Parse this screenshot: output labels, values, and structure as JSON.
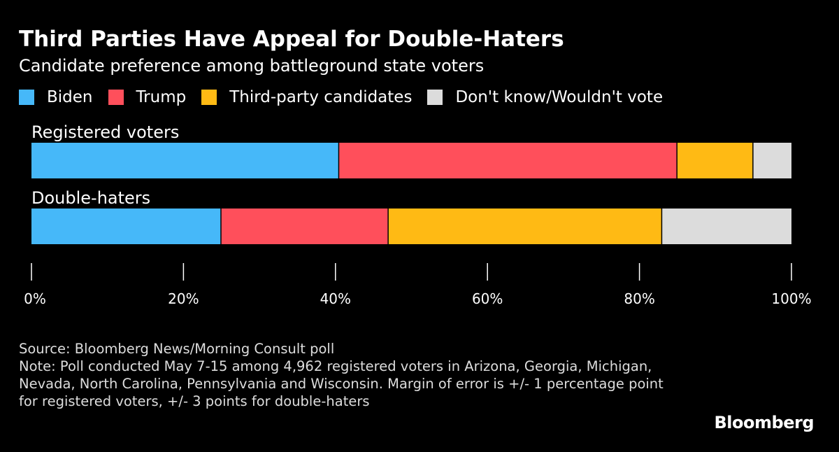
{
  "chart_data": {
    "type": "bar",
    "orientation": "horizontal-stacked",
    "title": "Third Parties Have Appeal for Double-Haters",
    "subtitle": "Candidate preference among battleground state voters",
    "categories": [
      "Registered voters",
      "Double-haters"
    ],
    "series": [
      {
        "name": "Biden",
        "color": "#46b8f9",
        "values": [
          40.5,
          25
        ]
      },
      {
        "name": "Trump",
        "color": "#ff4f5b",
        "values": [
          44.5,
          22
        ]
      },
      {
        "name": "Third-party candidates",
        "color": "#ffba14",
        "values": [
          10,
          36
        ]
      },
      {
        "name": "Don't know/Wouldn't vote",
        "color": "#dcdcdc",
        "values": [
          5,
          17
        ]
      }
    ],
    "xlim": [
      0,
      100
    ],
    "xticks": [
      0,
      20,
      40,
      60,
      80,
      100
    ],
    "xtick_labels": [
      "0%",
      "20%",
      "40%",
      "60%",
      "80%",
      "100%"
    ],
    "legend": "top"
  },
  "footer": {
    "source": "Source: Bloomberg News/Morning Consult poll",
    "note": "Note: Poll conducted May 7-15 among 4,962 registered voters in Arizona, Georgia, Michigan, Nevada, North Carolina, Pennsylvania and Wisconsin. Margin of error is +/- 1 percentage point for registered voters, +/- 3 points for double-haters"
  },
  "logo": "Bloomberg"
}
